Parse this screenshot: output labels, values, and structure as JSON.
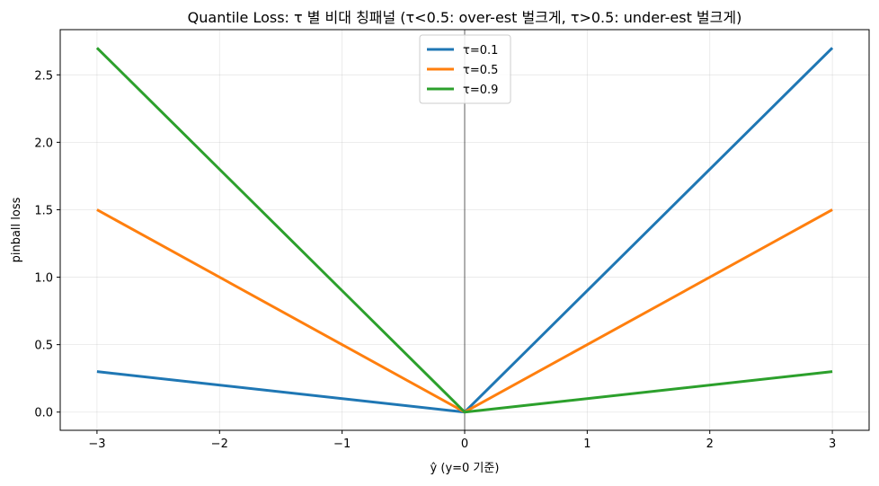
{
  "chart_data": {
    "type": "line",
    "title": "Quantile Loss: τ 별 비대 칭패널 (τ<0.5: over-est 벌크게, τ>0.5: under-est 벌크게)",
    "xlabel": "ŷ (y=0 기준)",
    "ylabel": "pinball loss",
    "xlim": [
      -3.3,
      3.3
    ],
    "ylim": [
      -0.135,
      2.835
    ],
    "x_ticks": [
      -3,
      -2,
      -1,
      0,
      1,
      2,
      3
    ],
    "x_tick_labels": [
      "−3",
      "−2",
      "−1",
      "0",
      "1",
      "2",
      "3"
    ],
    "y_ticks": [
      0.0,
      0.5,
      1.0,
      1.5,
      2.0,
      2.5
    ],
    "y_tick_labels": [
      "0.0",
      "0.5",
      "1.0",
      "1.5",
      "2.0",
      "2.5"
    ],
    "grid": true,
    "legend_position": "top-center",
    "vline_x": 0,
    "series": [
      {
        "name": "τ=0.1",
        "color": "#1f77b4",
        "x": [
          -3,
          0,
          3
        ],
        "y": [
          0.3,
          0,
          2.7
        ]
      },
      {
        "name": "τ=0.5",
        "color": "#ff7f0e",
        "x": [
          -3,
          0,
          3
        ],
        "y": [
          1.5,
          0,
          1.5
        ]
      },
      {
        "name": "τ=0.9",
        "color": "#2ca02c",
        "x": [
          -3,
          0,
          3
        ],
        "y": [
          2.7,
          0,
          0.3
        ]
      }
    ]
  }
}
